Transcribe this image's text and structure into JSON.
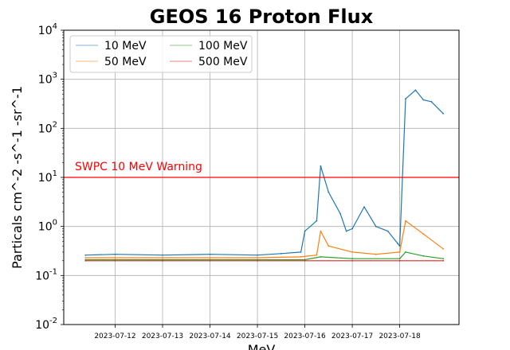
{
  "chart_data": {
    "type": "line",
    "title": "GEOS 16 Proton Flux",
    "xlabel": "MeV",
    "ylabel": "Particals cm^-2 -s^-1 -sr^-1",
    "yscale": "log",
    "ylim": [
      0.01,
      10000
    ],
    "xlim": [
      "2023-07-10T22:00",
      "2023-07-19T06:00"
    ],
    "grid": true,
    "legend_position": "upper-left",
    "legend_columns": 2,
    "x_tick_labels": [
      "2023-07-12",
      "2023-07-13",
      "2023-07-14",
      "2023-07-15",
      "2023-07-16",
      "2023-07-17",
      "2023-07-18"
    ],
    "y_tick_labels": [
      {
        "base": "10",
        "exp": "-2"
      },
      {
        "base": "10",
        "exp": "-1"
      },
      {
        "base": "10",
        "exp": "0"
      },
      {
        "base": "10",
        "exp": "1"
      },
      {
        "base": "10",
        "exp": "2"
      },
      {
        "base": "10",
        "exp": "3"
      },
      {
        "base": "10",
        "exp": "4"
      }
    ],
    "threshold": {
      "value": 10,
      "label": "SWPC 10 MeV Warning",
      "color": "#ff0000"
    },
    "series": [
      {
        "name": "10 MeV",
        "color": "#1f77b4",
        "x": [
          "2023-07-11T09:00",
          "2023-07-12T00:00",
          "2023-07-13T00:00",
          "2023-07-14T00:00",
          "2023-07-15T00:00",
          "2023-07-15T12:00",
          "2023-07-15T22:00",
          "2023-07-16T00:00",
          "2023-07-16T06:00",
          "2023-07-16T08:00",
          "2023-07-16T12:00",
          "2023-07-16T18:00",
          "2023-07-16T21:00",
          "2023-07-17T00:00",
          "2023-07-17T06:00",
          "2023-07-17T12:00",
          "2023-07-17T18:00",
          "2023-07-17T23:00",
          "2023-07-18T00:00",
          "2023-07-18T03:00",
          "2023-07-18T08:00",
          "2023-07-18T12:00",
          "2023-07-18T16:00",
          "2023-07-18T22:00"
        ],
        "values": [
          0.26,
          0.27,
          0.26,
          0.27,
          0.26,
          0.28,
          0.3,
          0.8,
          1.3,
          17,
          5,
          1.8,
          0.8,
          0.9,
          2.5,
          1.0,
          0.8,
          0.45,
          0.4,
          400,
          600,
          380,
          350,
          200
        ]
      },
      {
        "name": "50 MeV",
        "color": "#ff7f0e",
        "x": [
          "2023-07-11T09:00",
          "2023-07-12T00:00",
          "2023-07-13T00:00",
          "2023-07-14T00:00",
          "2023-07-15T00:00",
          "2023-07-15T22:00",
          "2023-07-16T06:00",
          "2023-07-16T08:00",
          "2023-07-16T12:00",
          "2023-07-17T00:00",
          "2023-07-17T12:00",
          "2023-07-18T00:00",
          "2023-07-18T03:00",
          "2023-07-18T12:00",
          "2023-07-18T22:00"
        ],
        "values": [
          0.23,
          0.23,
          0.23,
          0.23,
          0.23,
          0.24,
          0.26,
          0.8,
          0.4,
          0.3,
          0.27,
          0.3,
          1.3,
          0.7,
          0.35
        ]
      },
      {
        "name": "100 MeV",
        "color": "#2ca02c",
        "x": [
          "2023-07-11T09:00",
          "2023-07-12T00:00",
          "2023-07-13T00:00",
          "2023-07-14T00:00",
          "2023-07-15T00:00",
          "2023-07-16T00:00",
          "2023-07-16T08:00",
          "2023-07-17T00:00",
          "2023-07-18T00:00",
          "2023-07-18T03:00",
          "2023-07-18T12:00",
          "2023-07-18T22:00"
        ],
        "values": [
          0.21,
          0.21,
          0.21,
          0.21,
          0.21,
          0.21,
          0.24,
          0.22,
          0.22,
          0.3,
          0.25,
          0.22
        ]
      },
      {
        "name": "500 MeV",
        "color": "#d62728",
        "x": [
          "2023-07-11T09:00",
          "2023-07-12T00:00",
          "2023-07-13T00:00",
          "2023-07-14T00:00",
          "2023-07-15T00:00",
          "2023-07-16T00:00",
          "2023-07-17T00:00",
          "2023-07-18T00:00",
          "2023-07-18T22:00"
        ],
        "values": [
          0.2,
          0.2,
          0.2,
          0.2,
          0.2,
          0.2,
          0.2,
          0.2,
          0.2
        ]
      }
    ]
  }
}
